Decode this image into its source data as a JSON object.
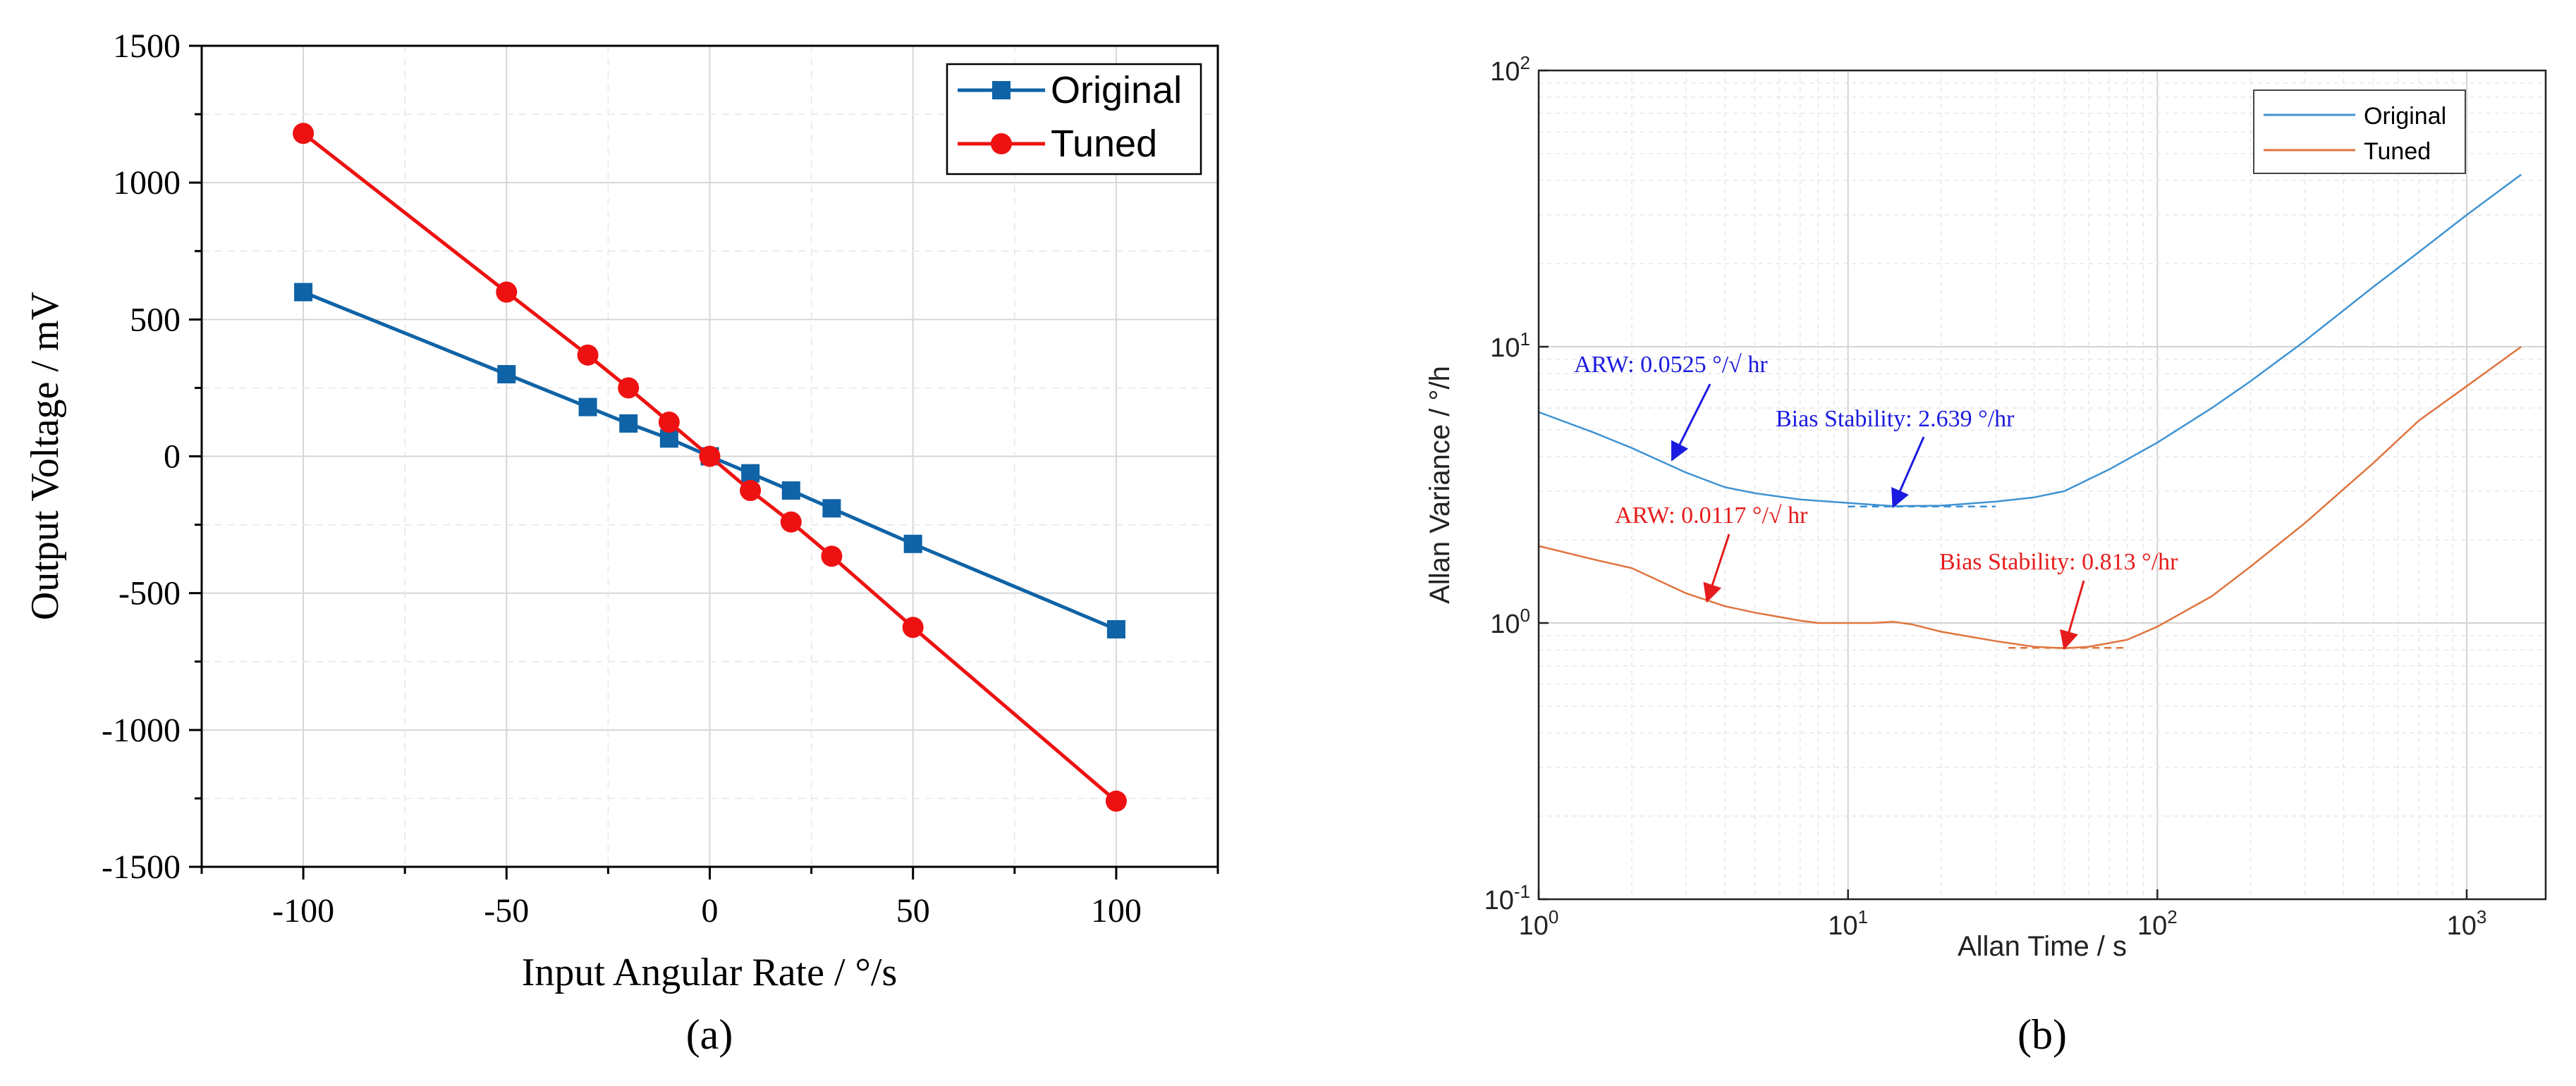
{
  "colors": {
    "a_original": "#0f63a6",
    "a_tuned": "#ee1111",
    "b_original": "#3f93d3",
    "b_tuned": "#e0743e",
    "b_annot_blue": "#1b1bdf",
    "b_annot_red": "#e61c1c"
  },
  "chart_data": [
    {
      "type": "line",
      "id": "a",
      "caption": "(a)",
      "title": "",
      "xlabel": "Input Angular Rate / °/s",
      "ylabel": "Output Voltage / mV",
      "xlim": [
        -125,
        125
      ],
      "ylim": [
        -1500,
        1500
      ],
      "xticks": [
        -100,
        -50,
        0,
        50,
        100
      ],
      "yticks": [
        -1500,
        -1000,
        -500,
        0,
        500,
        1000,
        1500
      ],
      "xtick_labels": [
        "-100",
        "-50",
        "0",
        "50",
        "100"
      ],
      "ytick_labels": [
        "-1500",
        "-1000",
        "-500",
        "0",
        "500",
        "1000",
        "1500"
      ],
      "grid": true,
      "legend": "top-right",
      "series": [
        {
          "name": "Original",
          "marker": "square",
          "x": [
            -100,
            -50,
            -30,
            -20,
            -10,
            0,
            10,
            20,
            30,
            50,
            100
          ],
          "y": [
            600,
            300,
            180,
            120,
            65,
            0,
            -62,
            -125,
            -190,
            -320,
            -632
          ]
        },
        {
          "name": "Tuned",
          "marker": "circle",
          "x": [
            -100,
            -50,
            -30,
            -20,
            -10,
            0,
            10,
            20,
            30,
            50,
            100
          ],
          "y": [
            1180,
            600,
            370,
            250,
            125,
            0,
            -125,
            -240,
            -365,
            -625,
            -1260
          ]
        }
      ]
    },
    {
      "type": "line",
      "id": "b",
      "caption": "(b)",
      "title": "",
      "xlabel": "Allan Time / s",
      "ylabel": "Allan Variance / °/h",
      "xscale": "log",
      "yscale": "log",
      "xlim": [
        1,
        1800
      ],
      "ylim": [
        0.1,
        100
      ],
      "xtick_labels": [
        {
          "base": "10",
          "exp": "0"
        },
        {
          "base": "10",
          "exp": "1"
        },
        {
          "base": "10",
          "exp": "2"
        },
        {
          "base": "10",
          "exp": "3"
        }
      ],
      "ytick_labels": [
        {
          "base": "10",
          "exp": "-1"
        },
        {
          "base": "10",
          "exp": "0"
        },
        {
          "base": "10",
          "exp": "1"
        },
        {
          "base": "10",
          "exp": "2"
        }
      ],
      "grid": true,
      "legend": "top-right",
      "series": [
        {
          "name": "Original",
          "x": [
            1,
            1.5,
            2,
            3,
            4,
            5,
            7,
            10,
            12,
            14,
            20,
            30,
            40,
            50,
            70,
            100,
            150,
            200,
            300,
            500,
            700,
            1000,
            1500
          ],
          "y": [
            5.8,
            4.9,
            4.3,
            3.5,
            3.1,
            2.95,
            2.8,
            2.72,
            2.68,
            2.65,
            2.66,
            2.75,
            2.85,
            3.0,
            3.6,
            4.5,
            6.0,
            7.5,
            10.5,
            16.5,
            22,
            30,
            42
          ]
        },
        {
          "name": "Tuned",
          "x": [
            1,
            1.5,
            2,
            3,
            4,
            5,
            7,
            8,
            10,
            12,
            14,
            16,
            20,
            30,
            40,
            50,
            60,
            80,
            100,
            150,
            200,
            300,
            500,
            700,
            1000,
            1500
          ],
          "y": [
            1.9,
            1.7,
            1.58,
            1.28,
            1.15,
            1.09,
            1.02,
            1.0,
            1.0,
            1.0,
            1.01,
            0.99,
            0.93,
            0.86,
            0.82,
            0.81,
            0.82,
            0.87,
            0.97,
            1.25,
            1.6,
            2.3,
            3.8,
            5.4,
            7.2,
            10.0
          ]
        }
      ],
      "annotations": [
        {
          "text": "ARW: 0.0525 °/√ hr",
          "series": "Original",
          "arrow_to": [
            2.7,
            3.9
          ]
        },
        {
          "text": "Bias Stability: 2.639 °/hr",
          "series": "Original",
          "arrow_to": [
            14,
            2.64
          ]
        },
        {
          "text": "ARW: 0.0117 °/√ hr",
          "series": "Tuned",
          "arrow_to": [
            3.5,
            1.2
          ]
        },
        {
          "text": "Bias Stability: 0.813 °/hr",
          "series": "Tuned",
          "arrow_to": [
            50,
            0.81
          ]
        }
      ],
      "reference_lines": [
        {
          "series": "Original",
          "y": 2.639,
          "x_range": [
            10,
            30
          ]
        },
        {
          "series": "Tuned",
          "y": 0.813,
          "x_range": [
            33,
            80
          ]
        }
      ]
    }
  ]
}
